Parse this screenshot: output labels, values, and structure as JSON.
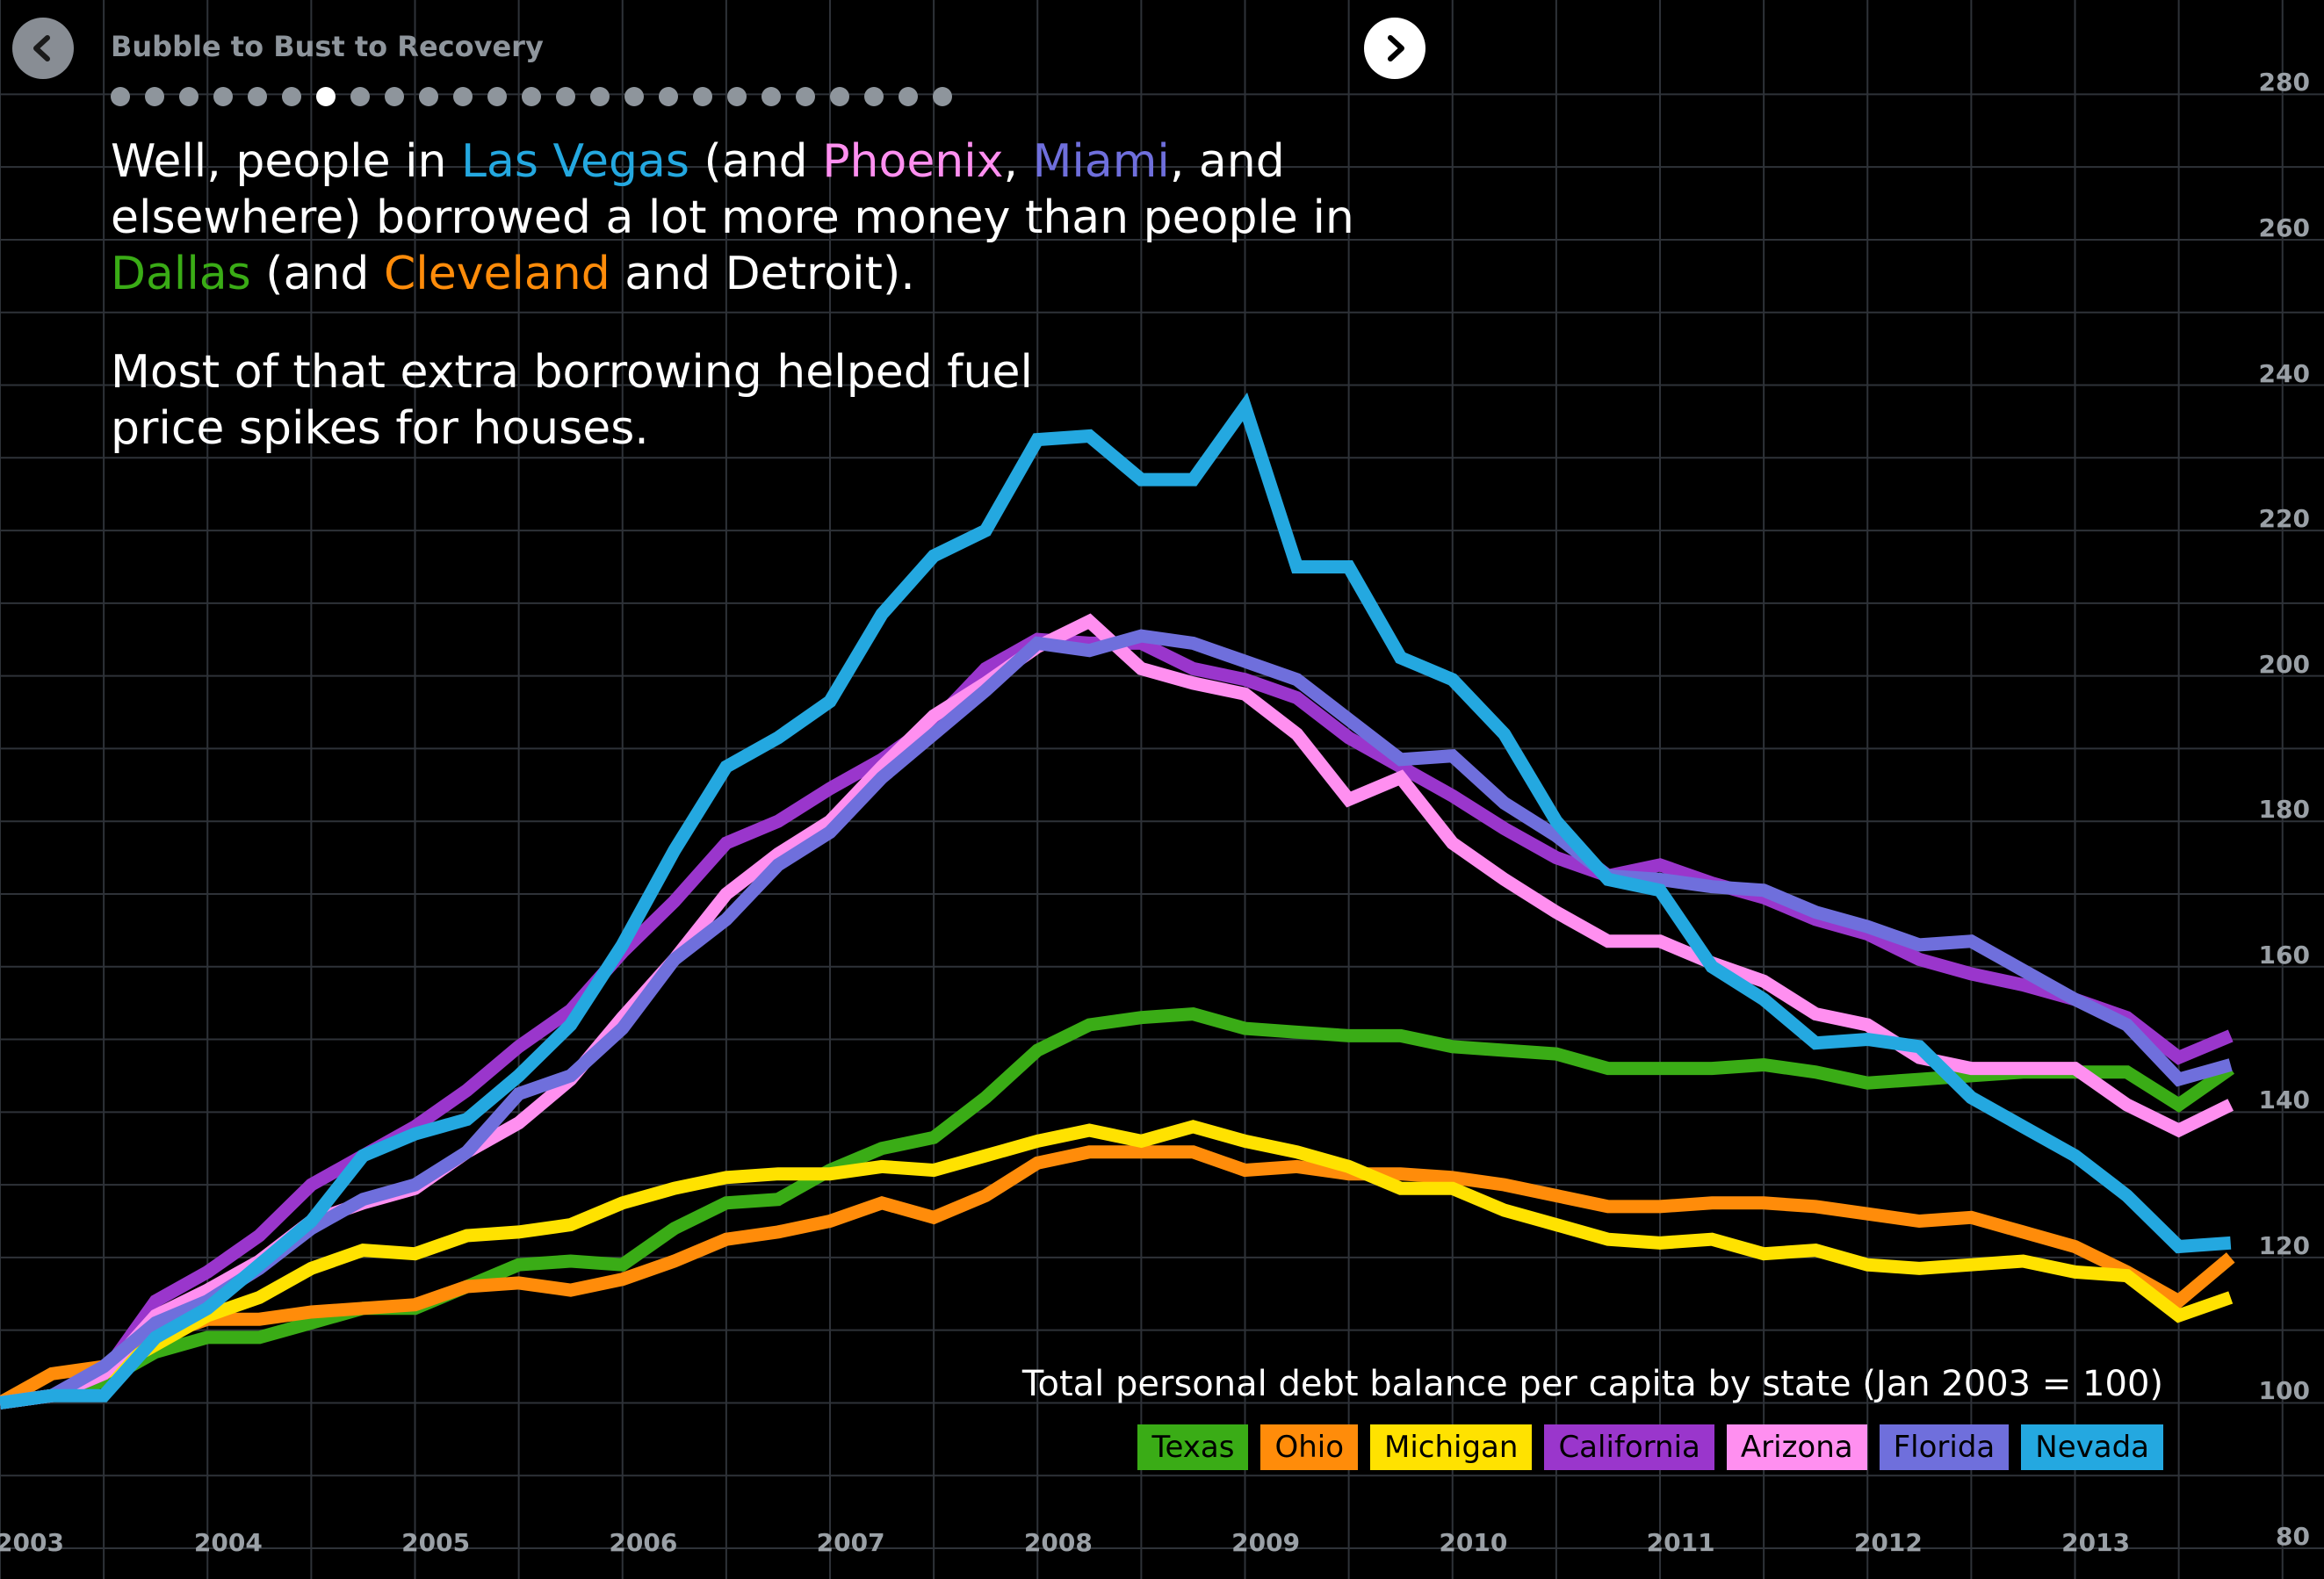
{
  "header": {
    "story_title": "Bubble to Bust to Recovery",
    "slide_count": 25,
    "active_slide": 7
  },
  "text": {
    "p1_a": "Well, people in ",
    "p1_lasvegas": "Las Vegas",
    "p1_b": " (and ",
    "p1_phoenix": "Phoenix",
    "p1_c": ", ",
    "p1_miami": "Miami",
    "p1_d": ", and elsewhere) borrowed a lot more money than people in ",
    "p1_dallas": "Dallas",
    "p1_e": " (and ",
    "p1_cleveland": "Cleveland",
    "p1_f": " and Detroit).",
    "p2": "Most of that extra borrowing helped fuel price spikes for houses."
  },
  "colors": {
    "Texas": "#3aac16",
    "Ohio": "#ff8c0a",
    "Michigan": "#ffe200",
    "California": "#9a36cc",
    "Arizona": "#ff8ff0",
    "Florida": "#6f6fdc",
    "Nevada": "#24a8e0"
  },
  "chart_data": {
    "type": "line",
    "title": "Total personal debt balance per capita by state (Jan 2003 = 100)",
    "y_ticks": [
      80,
      100,
      120,
      140,
      160,
      180,
      200,
      220,
      240,
      260,
      280
    ],
    "x_ticks": [
      "2003",
      "2004",
      "2005",
      "2006",
      "2007",
      "2008",
      "2009",
      "2010",
      "2011",
      "2012",
      "2013"
    ],
    "ylim": [
      80,
      285
    ],
    "xlim": [
      2003.0,
      2014.2
    ],
    "x": [
      2003.0,
      2003.25,
      2003.5,
      2003.75,
      2004.0,
      2004.25,
      2004.5,
      2004.75,
      2005.0,
      2005.25,
      2005.5,
      2005.75,
      2006.0,
      2006.25,
      2006.5,
      2006.75,
      2007.0,
      2007.25,
      2007.5,
      2007.75,
      2008.0,
      2008.25,
      2008.5,
      2008.75,
      2009.0,
      2009.25,
      2009.5,
      2009.75,
      2010.0,
      2010.25,
      2010.5,
      2010.75,
      2011.0,
      2011.25,
      2011.5,
      2011.75,
      2012.0,
      2012.25,
      2012.5,
      2012.75,
      2013.0,
      2013.25,
      2013.5,
      2013.75
    ],
    "series": [
      {
        "name": "Texas",
        "values": [
          100,
          101,
          103,
          107,
          109,
          109,
          111,
          113,
          113,
          116,
          119,
          119.5,
          119,
          124,
          127.5,
          128,
          132,
          135,
          136.5,
          142,
          148.5,
          152,
          153,
          153.5,
          151.5,
          151,
          150.5,
          150.5,
          149,
          148.5,
          148,
          146,
          146,
          146,
          146.5,
          145.5,
          144,
          144.5,
          145,
          145.5,
          145.5,
          145.5,
          141,
          146
        ]
      },
      {
        "name": "Ohio",
        "values": [
          100,
          104,
          105,
          109,
          111.5,
          111.5,
          112.5,
          113,
          113.5,
          116,
          116.5,
          115.5,
          117,
          119.5,
          122.5,
          123.5,
          125,
          127.5,
          125.5,
          128.5,
          133,
          134.5,
          134.5,
          134.5,
          132,
          132.5,
          131.5,
          131.5,
          131,
          130,
          128.5,
          127,
          127,
          127.5,
          127.5,
          127,
          126,
          125,
          125.5,
          123.5,
          121.5,
          118,
          114,
          120
        ]
      },
      {
        "name": "Michigan",
        "values": [
          100,
          101,
          104,
          108,
          112,
          114.5,
          118.5,
          121,
          120.5,
          123,
          123.5,
          124.5,
          127.5,
          129.5,
          131,
          131.5,
          131.5,
          132.5,
          132,
          134,
          136,
          137.5,
          136,
          138,
          136,
          134.5,
          132.5,
          129.5,
          129.5,
          126.5,
          124.5,
          122.5,
          122,
          122.5,
          120.5,
          121,
          119,
          118.5,
          119,
          119.5,
          118,
          117.5,
          112,
          114.5
        ]
      },
      {
        "name": "California",
        "values": [
          100,
          101,
          104,
          114,
          118,
          123,
          130,
          134,
          138,
          143,
          149,
          154,
          162,
          169,
          177,
          180,
          184.5,
          188.5,
          193.5,
          201,
          205,
          204.5,
          204.5,
          201,
          199.5,
          197,
          191.5,
          187.5,
          183.5,
          179,
          175,
          172.5,
          174,
          171.5,
          169.5,
          166.5,
          164.5,
          161,
          159,
          157.5,
          155.5,
          153,
          147.5,
          150.5
        ]
      },
      {
        "name": "Arizona",
        "values": [
          100,
          101,
          104,
          112,
          115.5,
          119.5,
          125,
          127.5,
          129.5,
          134.5,
          138.5,
          144.5,
          153,
          161,
          170,
          175.5,
          180,
          187.5,
          194.5,
          199,
          204,
          207.5,
          201,
          199,
          197.5,
          192,
          183,
          186,
          177,
          172,
          167.5,
          163.5,
          163.5,
          160.5,
          158,
          153.5,
          152,
          147.5,
          146,
          146,
          146,
          141,
          137.5,
          141
        ]
      },
      {
        "name": "Florida",
        "values": [
          100,
          101,
          105,
          111,
          114,
          118.5,
          124,
          128,
          130,
          134.5,
          142.5,
          145,
          151.5,
          161,
          166.5,
          174,
          178.5,
          186,
          192,
          198,
          204.5,
          203.5,
          205.5,
          204.5,
          202,
          199.5,
          194,
          188.5,
          189,
          182.5,
          178,
          172.5,
          172,
          171,
          170.5,
          167.5,
          165.5,
          163,
          163.5,
          159.5,
          155.5,
          152,
          144.5,
          146.5
        ]
      },
      {
        "name": "Nevada",
        "values": [
          100,
          101,
          101,
          109,
          113,
          119,
          125,
          134,
          137,
          139,
          145,
          152,
          163,
          176,
          187.5,
          191.5,
          196.5,
          208.5,
          216.5,
          220,
          232.5,
          233,
          227,
          227,
          237,
          215,
          215,
          202.5,
          199.5,
          192,
          180,
          172,
          170.5,
          160,
          155.5,
          149.5,
          150,
          149,
          142,
          138,
          134,
          128.5,
          121.5,
          122
        ]
      }
    ]
  }
}
